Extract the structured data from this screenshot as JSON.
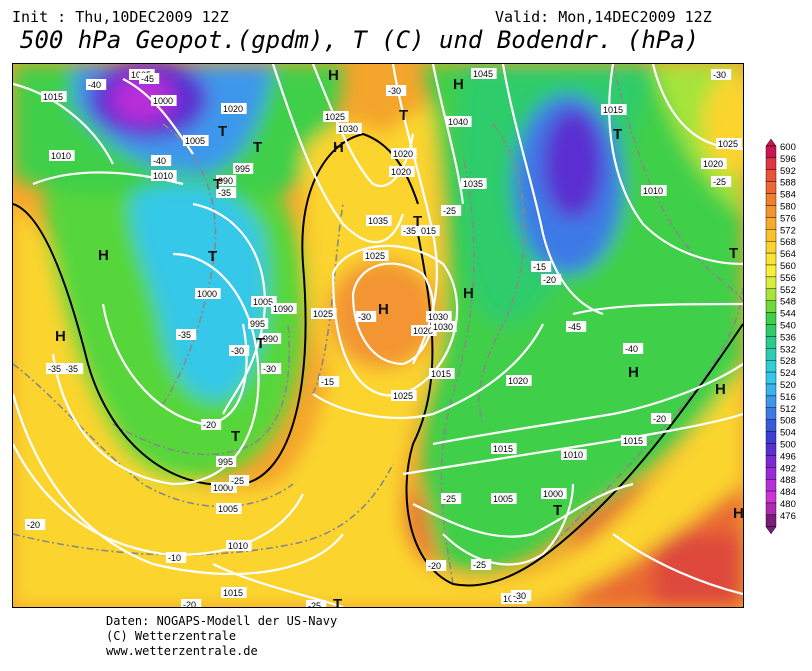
{
  "header": {
    "init": "Init : Thu,10DEC2009 12Z",
    "valid": "Valid: Mon,14DEC2009 12Z",
    "title": "500 hPa Geopot.(gpdm), T (C) und Bodendr. (hPa)"
  },
  "legend": {
    "values": [
      "600",
      "596",
      "592",
      "588",
      "584",
      "580",
      "576",
      "572",
      "568",
      "564",
      "560",
      "556",
      "552",
      "548",
      "544",
      "540",
      "536",
      "532",
      "528",
      "524",
      "520",
      "516",
      "512",
      "508",
      "504",
      "500",
      "496",
      "492",
      "488",
      "484",
      "480",
      "476"
    ],
    "colors": [
      "#c8174f",
      "#e03545",
      "#e8523a",
      "#ec6a32",
      "#f08030",
      "#f39530",
      "#f7aa2c",
      "#fac12c",
      "#fbd42f",
      "#fbe433",
      "#f7ef3c",
      "#d8ee3c",
      "#a6e43a",
      "#6fd83a",
      "#3fcf49",
      "#2ecc6a",
      "#2bcb8f",
      "#2ccdb1",
      "#2fcfd1",
      "#35c8e8",
      "#3ab4ee",
      "#3c98ec",
      "#3c7ae6",
      "#3a5adc",
      "#3d3fd2",
      "#5a2fd0",
      "#7a2ad4",
      "#9a2ad6",
      "#b82fd8",
      "#ce35d6",
      "#b02bb0",
      "#7a1d7a"
    ]
  },
  "map_labels": {
    "isobars": [
      "1005",
      "1015",
      "1000",
      "1020",
      "1005",
      "1010",
      "1010",
      "995",
      "990",
      "1025",
      "1030",
      "1020",
      "1020",
      "1040",
      "1045",
      "1015",
      "1035",
      "1025",
      "1020",
      "1010",
      "1025",
      "1035",
      "1015",
      "1015",
      "1020",
      "1000",
      "1005",
      "1090",
      "995",
      "990",
      "1025",
      "1030",
      "1030",
      "1025",
      "1020",
      "1015",
      "1010",
      "1015",
      "1005",
      "1000",
      "995",
      "1000",
      "1005",
      "1010",
      "1015",
      "1005"
    ],
    "temperatures": [
      "-40",
      "-45",
      "-40",
      "-35",
      "-30",
      "-25",
      "-35",
      "-35",
      "-30",
      "-25",
      "-20",
      "-15",
      "-10",
      "-20",
      "-30",
      "-35",
      "-25",
      "-20",
      "-25",
      "-30",
      "-25",
      "-20",
      "-15",
      "-45",
      "-40",
      "-30",
      "-25",
      "-20",
      "-20",
      "-30",
      "-35"
    ],
    "highs": [
      "H",
      "H",
      "H",
      "H",
      "H",
      "H",
      "H",
      "H",
      "H",
      "H"
    ],
    "lows": [
      "T",
      "T",
      "T",
      "T",
      "T",
      "T",
      "T",
      "T",
      "T",
      "T",
      "T",
      "T"
    ]
  },
  "footer": {
    "line1": "Daten: NOGAPS-Modell der US-Navy",
    "line2": "(C) Wetterzentrale",
    "line3": "www.wetterzentrale.de"
  }
}
